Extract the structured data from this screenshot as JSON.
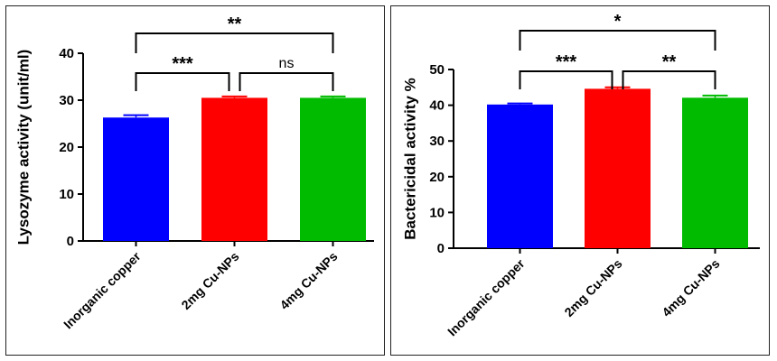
{
  "chart_data": [
    {
      "type": "bar",
      "ylabel": "Lysozyme activity (unit/ml)",
      "categories": [
        "Inorganic copper",
        "2mg Cu-NPs",
        "4mg Cu-NPs"
      ],
      "values": [
        26.3,
        30.5,
        30.5
      ],
      "errors": [
        0.5,
        0.3,
        0.3
      ],
      "colors": [
        "#0000ff",
        "#ff0000",
        "#00bb00"
      ],
      "ylim": [
        0,
        40
      ],
      "yticks": [
        0,
        10,
        20,
        30,
        40
      ],
      "grid": false,
      "significance": [
        {
          "from": 0,
          "to": 1,
          "label": "***",
          "level": 1
        },
        {
          "from": 1,
          "to": 2,
          "label": "ns",
          "level": 1
        },
        {
          "from": 0,
          "to": 2,
          "label": "**",
          "level": 2
        }
      ]
    },
    {
      "type": "bar",
      "ylabel": "Bactericidal activity %",
      "categories": [
        "Inorganic copper",
        "2mg Cu-NPs",
        "4mg Cu-NPs"
      ],
      "values": [
        40.2,
        44.6,
        42.1
      ],
      "errors": [
        0.3,
        0.4,
        0.6
      ],
      "colors": [
        "#0000ff",
        "#ff0000",
        "#00bb00"
      ],
      "ylim": [
        0,
        50
      ],
      "yticks": [
        0,
        10,
        20,
        30,
        40,
        50
      ],
      "grid": false,
      "significance": [
        {
          "from": 0,
          "to": 1,
          "label": "***",
          "level": 1
        },
        {
          "from": 1,
          "to": 2,
          "label": "**",
          "level": 1
        },
        {
          "from": 0,
          "to": 2,
          "label": "*",
          "level": 2
        }
      ]
    }
  ]
}
